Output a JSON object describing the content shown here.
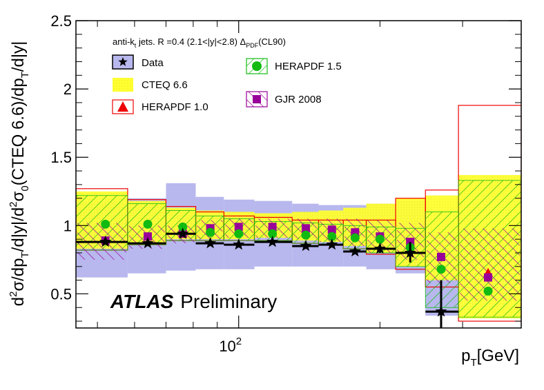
{
  "chart_data": {
    "type": "scatter",
    "title": "anti-kt jets. R =0.4 (2.1<|y|<2.8) ΔPDF(CL90)",
    "header": {
      "prefix": "anti-k",
      "prefix_sub": "t",
      "middle": "jets. R =0.4 (2.1<|y|<2.8) Δ",
      "delta_sub": "PDF",
      "suffix": "(CL90)"
    },
    "ylabel": "d²σ/dpT/d|y|/d²σ0(CTEQ 6.6)/dpT/d|y|",
    "ylabel_parts": {
      "d1": "d",
      "sup2a": "2",
      "sigma1": "σ/dp",
      "subT1": "T",
      "mid1": "/d|y|/d",
      "sup2b": "2",
      "sigma2": "σ",
      "sub0": "0",
      "mid2": "(CTEQ 6.6)/dp",
      "subT2": "T",
      "end": "/d|y|"
    },
    "xlabel": "pT[GeV]",
    "xlabel_parts": {
      "p": "p",
      "sub": "T",
      "rest": "[GeV]"
    },
    "x_scale": "log",
    "xlim": [
      45,
      400
    ],
    "ylim": [
      0.25,
      2.5
    ],
    "y_ticks": [
      {
        "value": 0.5,
        "label": "0.5"
      },
      {
        "value": 1,
        "label": "1"
      },
      {
        "value": 1.5,
        "label": "1.5"
      },
      {
        "value": 2,
        "label": "2"
      },
      {
        "value": 2.5,
        "label": "2.5"
      }
    ],
    "x_major_ticks": [
      {
        "value": 100,
        "base": "10",
        "exp": "2"
      }
    ],
    "x_minor_ticks": [
      50,
      60,
      70,
      80,
      90,
      200,
      300,
      400
    ],
    "grid": false,
    "legend_placement": "top-left",
    "brand": {
      "bold": "ATLAS",
      "plain": "Preliminary"
    },
    "bins": [
      {
        "lo": 45,
        "hi": 58,
        "x": 52,
        "data": 0.88,
        "stat_lo": 0.87,
        "stat_hi": 0.91,
        "syst_lo": 0.62,
        "syst_hi": 1.17,
        "cteq_lo": 0.83,
        "cteq_hi": 1.25,
        "hera10_lo": 0.82,
        "hera10_hi": 1.27,
        "hera15": 1.01,
        "hera15_lo": 0.82,
        "hera15_hi": 1.22,
        "gjr": 0.89,
        "gjr_lo": 0.75,
        "gjr_hi": 1.02
      },
      {
        "lo": 58,
        "hi": 70,
        "x": 64,
        "data": 0.87,
        "stat_lo": 0.86,
        "stat_hi": 0.89,
        "syst_lo": 0.65,
        "syst_hi": 1.2,
        "cteq_lo": 0.87,
        "cteq_hi": 1.18,
        "hera10_lo": 0.86,
        "hera10_hi": 1.19,
        "hera15": 1.01,
        "hera15_lo": 0.86,
        "hera15_hi": 1.16,
        "gjr": 0.92,
        "gjr_lo": 0.83,
        "gjr_hi": 1.0
      },
      {
        "lo": 70,
        "hi": 81,
        "x": 76,
        "data": 0.94,
        "stat_lo": 0.93,
        "stat_hi": 0.96,
        "syst_lo": 0.67,
        "syst_hi": 1.31,
        "cteq_lo": 0.9,
        "cteq_hi": 1.13,
        "hera10_lo": 0.89,
        "hera10_hi": 1.14,
        "hera15": 0.99,
        "hera15_lo": 0.89,
        "hera15_hi": 1.11,
        "gjr": 0.94,
        "gjr_lo": 0.87,
        "gjr_hi": 1.0
      },
      {
        "lo": 81,
        "hi": 93,
        "x": 87,
        "data": 0.87,
        "stat_lo": 0.86,
        "stat_hi": 0.89,
        "syst_lo": 0.68,
        "syst_hi": 1.21,
        "cteq_lo": 0.9,
        "cteq_hi": 1.11,
        "hera10_lo": 0.89,
        "hera10_hi": 1.1,
        "hera15": 0.95,
        "hera15_lo": 0.89,
        "hera15_hi": 1.07,
        "gjr": 0.98,
        "gjr_lo": 0.9,
        "gjr_hi": 1.04
      },
      {
        "lo": 93,
        "hi": 108,
        "x": 100,
        "data": 0.86,
        "stat_lo": 0.85,
        "stat_hi": 0.88,
        "syst_lo": 0.68,
        "syst_hi": 1.19,
        "cteq_lo": 0.9,
        "cteq_hi": 1.1,
        "hera10_lo": 0.89,
        "hera10_hi": 1.07,
        "hera15": 0.94,
        "hera15_lo": 0.89,
        "hera15_hi": 1.05,
        "gjr": 0.99,
        "gjr_lo": 0.91,
        "gjr_hi": 1.05
      },
      {
        "lo": 108,
        "hi": 130,
        "x": 118,
        "data": 0.88,
        "stat_lo": 0.87,
        "stat_hi": 0.9,
        "syst_lo": 0.7,
        "syst_hi": 1.18,
        "cteq_lo": 0.91,
        "cteq_hi": 1.09,
        "hera10_lo": 0.89,
        "hera10_hi": 1.06,
        "hera15": 0.94,
        "hera15_lo": 0.89,
        "hera15_hi": 1.03,
        "gjr": 0.99,
        "gjr_lo": 0.91,
        "gjr_hi": 1.05
      },
      {
        "lo": 130,
        "hi": 148,
        "x": 139,
        "data": 0.85,
        "stat_lo": 0.83,
        "stat_hi": 0.87,
        "syst_lo": 0.7,
        "syst_hi": 1.16,
        "cteq_lo": 0.89,
        "cteq_hi": 1.1,
        "hera10_lo": 0.87,
        "hera10_hi": 1.04,
        "hera15": 0.93,
        "hera15_lo": 0.87,
        "hera15_hi": 1.02,
        "gjr": 0.98,
        "gjr_lo": 0.9,
        "gjr_hi": 1.05
      },
      {
        "lo": 148,
        "hi": 167,
        "x": 158,
        "data": 0.86,
        "stat_lo": 0.84,
        "stat_hi": 0.88,
        "syst_lo": 0.7,
        "syst_hi": 1.15,
        "cteq_lo": 0.88,
        "cteq_hi": 1.11,
        "hera10_lo": 0.86,
        "hera10_hi": 1.04,
        "hera15": 0.92,
        "hera15_lo": 0.86,
        "hera15_hi": 1.01,
        "gjr": 0.97,
        "gjr_lo": 0.88,
        "gjr_hi": 1.05
      },
      {
        "lo": 167,
        "hi": 187,
        "x": 177,
        "data": 0.81,
        "stat_lo": 0.79,
        "stat_hi": 0.83,
        "syst_lo": 0.7,
        "syst_hi": 1.15,
        "cteq_lo": 0.85,
        "cteq_hi": 1.13,
        "hera10_lo": 0.83,
        "hera10_hi": 1.04,
        "hera15": 0.91,
        "hera15_lo": 0.83,
        "hera15_hi": 1.0,
        "gjr": 0.95,
        "gjr_lo": 0.85,
        "gjr_hi": 1.05
      },
      {
        "lo": 187,
        "hi": 216,
        "x": 200,
        "data": 0.83,
        "stat_lo": 0.8,
        "stat_hi": 0.86,
        "syst_lo": 0.68,
        "syst_hi": 1.16,
        "cteq_lo": 0.8,
        "cteq_hi": 1.16,
        "hera10_lo": 0.79,
        "hera10_hi": 1.04,
        "hera15": 0.9,
        "hera15_lo": 0.8,
        "hera15_hi": 0.99,
        "gjr": 0.92,
        "gjr_lo": 0.8,
        "gjr_hi": 1.04
      },
      {
        "lo": 216,
        "hi": 250,
        "x": 232,
        "data": 0.8,
        "stat_lo": 0.73,
        "stat_hi": 0.88,
        "syst_lo": 0.65,
        "syst_hi": 1.18,
        "cteq_lo": 0.7,
        "cteq_hi": 1.2,
        "hera10_lo": 0.68,
        "hera10_hi": 1.2,
        "hera15": 0.84,
        "hera15_lo": 0.7,
        "hera15_hi": 0.98,
        "gjr": 0.88,
        "gjr_lo": 0.75,
        "gjr_hi": 1.02
      },
      {
        "lo": 250,
        "hi": 294,
        "x": 270,
        "data": 0.37,
        "stat_lo": 0.2,
        "stat_hi": 0.6,
        "syst_lo": 0.34,
        "syst_hi": 0.62,
        "cteq_lo": 0.6,
        "cteq_hi": 1.22,
        "hera10_lo": 0.55,
        "hera10_hi": 1.26,
        "hera15": 0.68,
        "hera15_lo": 0.4,
        "hera15_hi": 1.1,
        "gjr": 0.77,
        "gjr_lo": 0.58,
        "gjr_hi": 0.95
      },
      {
        "lo": 294,
        "hi": 400,
        "x": 340,
        "data": null,
        "cteq_lo": 0.32,
        "cteq_hi": 1.37,
        "hera10_lo": 0.3,
        "hera10_hi": 1.88,
        "hera10": 0.65,
        "hera15": 0.52,
        "hera15_lo": 0.33,
        "hera15_hi": 1.33,
        "gjr": 0.62,
        "gjr_lo": 0.45,
        "gjr_hi": 0.98
      }
    ],
    "series": [
      {
        "name": "Data",
        "key": "data",
        "marker": "star",
        "color": "#000000",
        "band_color": "#b8b8ee"
      },
      {
        "name": "CTEQ 6.6",
        "key": "cteq",
        "marker": "band",
        "color": "#ffff33"
      },
      {
        "name": "HERAPDF 1.0",
        "key": "hera10",
        "marker": "triangle",
        "color": "#ee0000"
      },
      {
        "name": "HERAPDF 1.5",
        "key": "hera15",
        "marker": "circle",
        "color": "#11bb11"
      },
      {
        "name": "GJR 2008",
        "key": "gjr",
        "marker": "square",
        "color": "#990099"
      }
    ]
  }
}
